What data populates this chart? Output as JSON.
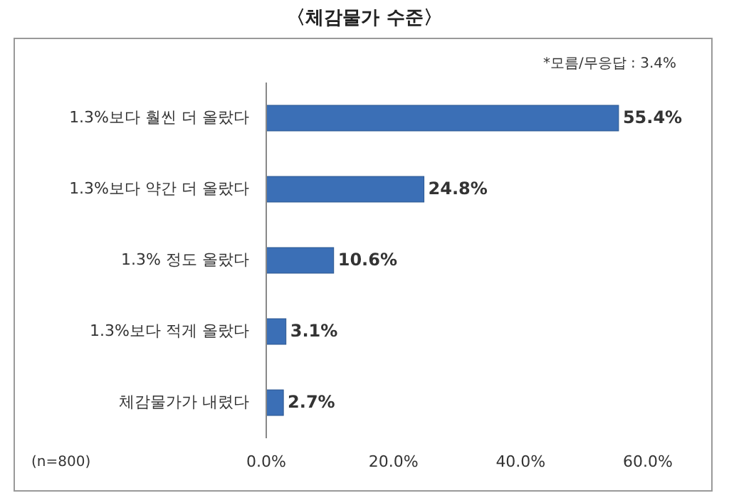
{
  "chart_data": {
    "type": "bar",
    "orientation": "horizontal",
    "title": "〈체감물가 수준〉",
    "categories": [
      "1.3%보다 훨씬 더 올랐다",
      "1.3%보다 약간 더 올랐다",
      "1.3% 정도 올랐다",
      "1.3%보다 적게 올랐다",
      "체감물가가 내렸다"
    ],
    "values": [
      55.4,
      24.8,
      10.6,
      3.1,
      2.7
    ],
    "value_labels": [
      "55.4%",
      "24.8%",
      "10.6%",
      "3.1%",
      "2.7%"
    ],
    "color": "#3b6fb6",
    "xlim": [
      0,
      60
    ],
    "xticks": [
      {
        "value": 0,
        "label": "0.0%"
      },
      {
        "value": 20,
        "label": "20.0%"
      },
      {
        "value": 40,
        "label": "40.0%"
      },
      {
        "value": 60,
        "label": "60.0%"
      }
    ],
    "annotations": [
      "*모름/무응답 : 3.4%",
      "(n=800)"
    ]
  }
}
